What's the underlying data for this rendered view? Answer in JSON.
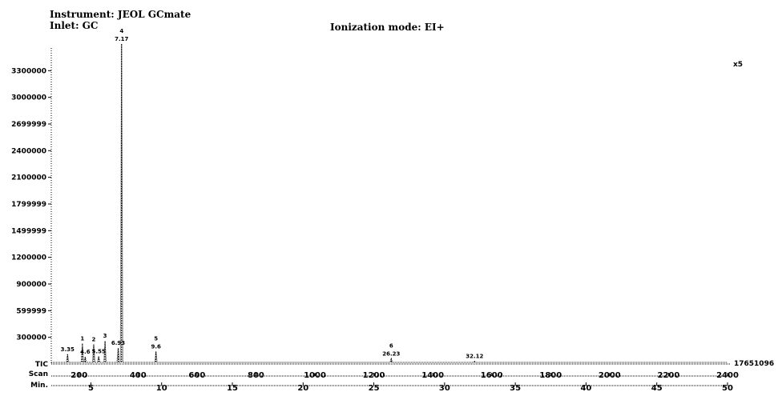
{
  "header": {
    "instrument": "Instrument: JEOL GCmate",
    "inlet": "Inlet: GC",
    "ionization": "Ionization mode: EI+"
  },
  "chart_data": {
    "type": "line",
    "title": "",
    "xlabel": "",
    "ylabel": "",
    "multiplier_label": "x5",
    "tic_label": "TIC",
    "scan_label": "Scan",
    "min_label": "Min.",
    "tic_max_label": "17651096",
    "ylim": [
      0,
      3600000
    ],
    "y_ticks": [
      {
        "value": 300000,
        "label": "300000"
      },
      {
        "value": 599999,
        "label": "599999"
      },
      {
        "value": 900000,
        "label": "900000"
      },
      {
        "value": 1200000,
        "label": "1200000"
      },
      {
        "value": 1499999,
        "label": "1499999"
      },
      {
        "value": 1799999,
        "label": "1799999"
      },
      {
        "value": 2100000,
        "label": "2100000"
      },
      {
        "value": 2400000,
        "label": "2400000"
      },
      {
        "value": 2699999,
        "label": "2699999"
      },
      {
        "value": 3000000,
        "label": "3000000"
      },
      {
        "value": 3300000,
        "label": "3300000"
      }
    ],
    "scan_ticks": [
      {
        "value": 200,
        "label": "200"
      },
      {
        "value": 400,
        "label": "400"
      },
      {
        "value": 600,
        "label": "600"
      },
      {
        "value": 800,
        "label": "800"
      },
      {
        "value": 1000,
        "label": "1000"
      },
      {
        "value": 1200,
        "label": "1200"
      },
      {
        "value": 1400,
        "label": "1400"
      },
      {
        "value": 1600,
        "label": "1600"
      },
      {
        "value": 1800,
        "label": "1800"
      },
      {
        "value": 2000,
        "label": "2000"
      },
      {
        "value": 2200,
        "label": "2200"
      },
      {
        "value": 2400,
        "label": "2400"
      }
    ],
    "min_ticks": [
      {
        "value": 5,
        "label": "5"
      },
      {
        "value": 10,
        "label": "10"
      },
      {
        "value": 15,
        "label": "15"
      },
      {
        "value": 20,
        "label": "20"
      },
      {
        "value": 25,
        "label": "25"
      },
      {
        "value": 30,
        "label": "30"
      },
      {
        "value": 35,
        "label": "35"
      },
      {
        "value": 40,
        "label": "40"
      },
      {
        "value": 45,
        "label": "45"
      },
      {
        "value": 50,
        "label": "50"
      }
    ],
    "x_range_min": [
      2.2,
      50
    ],
    "peaks": [
      {
        "rt": 3.35,
        "rt_label": "3.35",
        "number": "",
        "height": 110000
      },
      {
        "rt": 4.4,
        "rt_label": "",
        "number": "1",
        "height": 230000
      },
      {
        "rt": 4.6,
        "rt_label": "4.6",
        "number": "",
        "height": 80000
      },
      {
        "rt": 5.2,
        "rt_label": "",
        "number": "2",
        "height": 220000
      },
      {
        "rt": 5.55,
        "rt_label": "5.55",
        "number": "",
        "height": 85000
      },
      {
        "rt": 6.0,
        "rt_label": "",
        "number": "3",
        "height": 260000
      },
      {
        "rt": 6.93,
        "rt_label": "6.93",
        "number": "",
        "height": 180000
      },
      {
        "rt": 7.17,
        "rt_label": "7.17",
        "number": "4",
        "height": 3600000
      },
      {
        "rt": 9.6,
        "rt_label": "9.6",
        "number": "5",
        "height": 140000
      },
      {
        "rt": 26.23,
        "rt_label": "26.23",
        "number": "6",
        "height": 60000
      },
      {
        "rt": 32.12,
        "rt_label": "32.12",
        "number": "",
        "height": 30000
      }
    ]
  }
}
